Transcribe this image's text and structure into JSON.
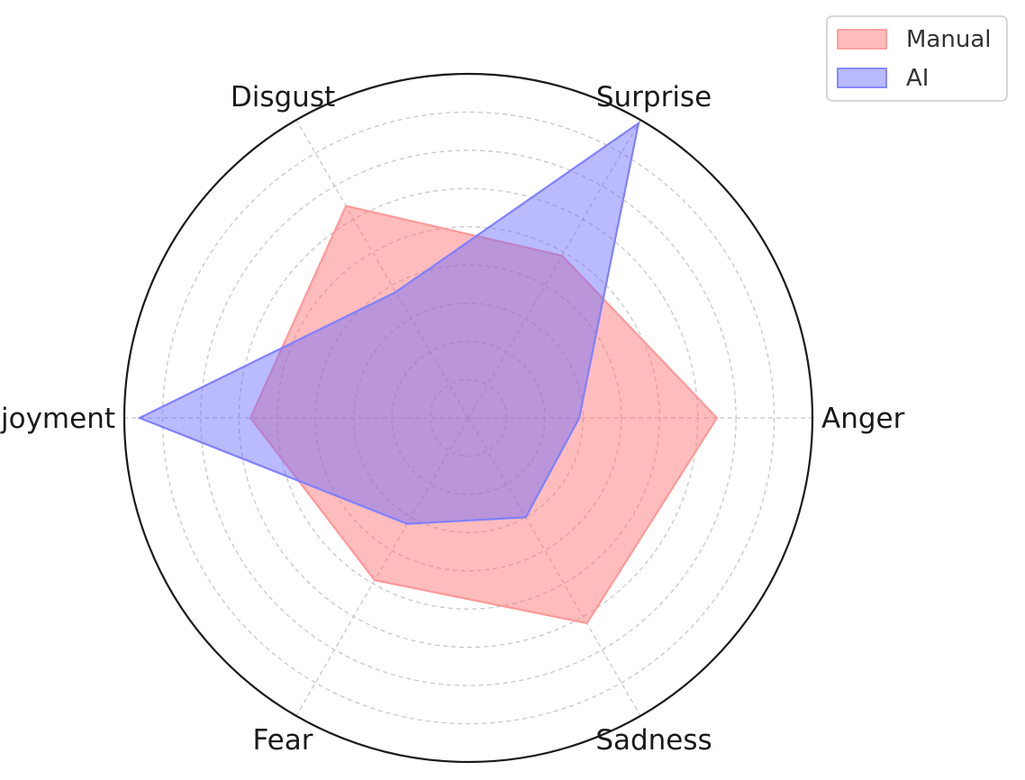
{
  "chart_data": {
    "type": "radar",
    "categories": [
      "Anger",
      "Surprise",
      "Disgust",
      "Enjoyment",
      "Fear",
      "Sadness"
    ],
    "rlim": [
      0,
      0.9
    ],
    "rings": 9,
    "grid": true,
    "series": [
      {
        "name": "Manual",
        "values": [
          0.65,
          0.49,
          0.64,
          0.57,
          0.49,
          0.62
        ],
        "color": "#ff9999",
        "fill": "#ff6b6b"
      },
      {
        "name": "AI",
        "values": [
          0.29,
          0.89,
          0.38,
          0.86,
          0.32,
          0.3
        ],
        "color": "#8080ff",
        "fill": "#6666ff"
      }
    ],
    "legend": {
      "placement": "top-right"
    }
  }
}
